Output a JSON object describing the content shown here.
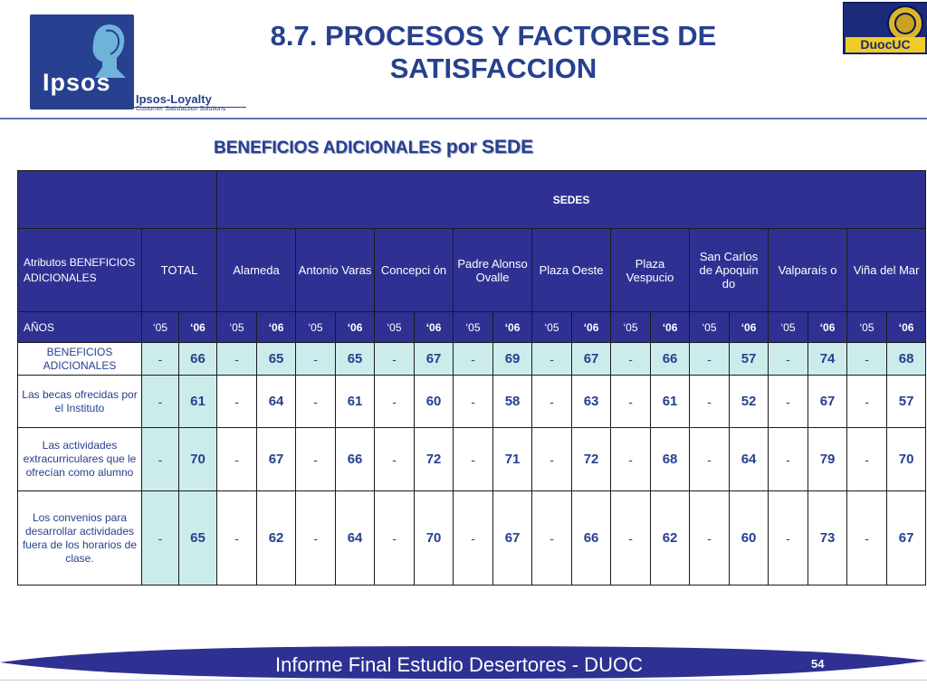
{
  "header": {
    "title_line1": "8.7. PROCESOS Y FACTORES DE",
    "title_line2": "SATISFACCION",
    "subtitle_main": "BENEFICIOS ADICIONALES",
    "subtitle_por": "por",
    "subtitle_sede": "SEDE"
  },
  "logos": {
    "ipsos": "Ipsos",
    "loyalty_line1": "Ipsos-Loyalty",
    "loyalty_line2": "Customer Satisfaction Solutions",
    "duoc": "DuocUC"
  },
  "table": {
    "sedes_label": "SEDES",
    "attr_header": "Atributos BENEFICIOS ADICIONALES",
    "total_header": "TOTAL",
    "sede_names": [
      "Alameda",
      "Antonio Varas",
      "Concepción",
      "Padre Alonso Ovalle",
      "Plaza Oeste",
      "Plaza Vespucio",
      "San Carlos de Apoquindo",
      "Valparaíso",
      "Viña del Mar"
    ],
    "sede_display": [
      "Alameda",
      "Antonio Varas",
      "Concepci ón",
      "Padre Alonso Ovalle",
      "Plaza Oeste",
      "Plaza Vespucio",
      "San Carlos de Apoquin do",
      "Valparaís o",
      "Viña del Mar"
    ],
    "years_label": "AÑOS",
    "year_05": "‘05",
    "year_06": "‘06",
    "rows": [
      {
        "label": "BENEFICIOS ADICIONALES",
        "values": [
          "-",
          "66",
          "-",
          "65",
          "-",
          "65",
          "-",
          "67",
          "-",
          "69",
          "-",
          "67",
          "-",
          "66",
          "-",
          "57",
          "-",
          "74",
          "-",
          "68"
        ]
      },
      {
        "label": "Las becas ofrecidas por el Instituto",
        "values": [
          "-",
          "61",
          "-",
          "64",
          "-",
          "61",
          "-",
          "60",
          "-",
          "58",
          "-",
          "63",
          "-",
          "61",
          "-",
          "52",
          "-",
          "67",
          "-",
          "57"
        ]
      },
      {
        "label": "Las actividades extracurriculares que le ofrecían como alumno",
        "values": [
          "-",
          "70",
          "-",
          "67",
          "-",
          "66",
          "-",
          "72",
          "-",
          "71",
          "-",
          "72",
          "-",
          "68",
          "-",
          "64",
          "-",
          "79",
          "-",
          "70"
        ]
      },
      {
        "label": "Los convenios para desarrollar actividades fuera de los horarios de clase.",
        "values": [
          "-",
          "65",
          "-",
          "62",
          "-",
          "64",
          "-",
          "70",
          "-",
          "67",
          "-",
          "66",
          "-",
          "62",
          "-",
          "60",
          "-",
          "73",
          "-",
          "67"
        ]
      }
    ]
  },
  "footer": {
    "text": "Informe Final Estudio Desertores - DUOC",
    "page": "54"
  },
  "colors": {
    "brand_blue": "#27408f",
    "header_fill": "#2e3192",
    "tint": "#ccecec"
  }
}
